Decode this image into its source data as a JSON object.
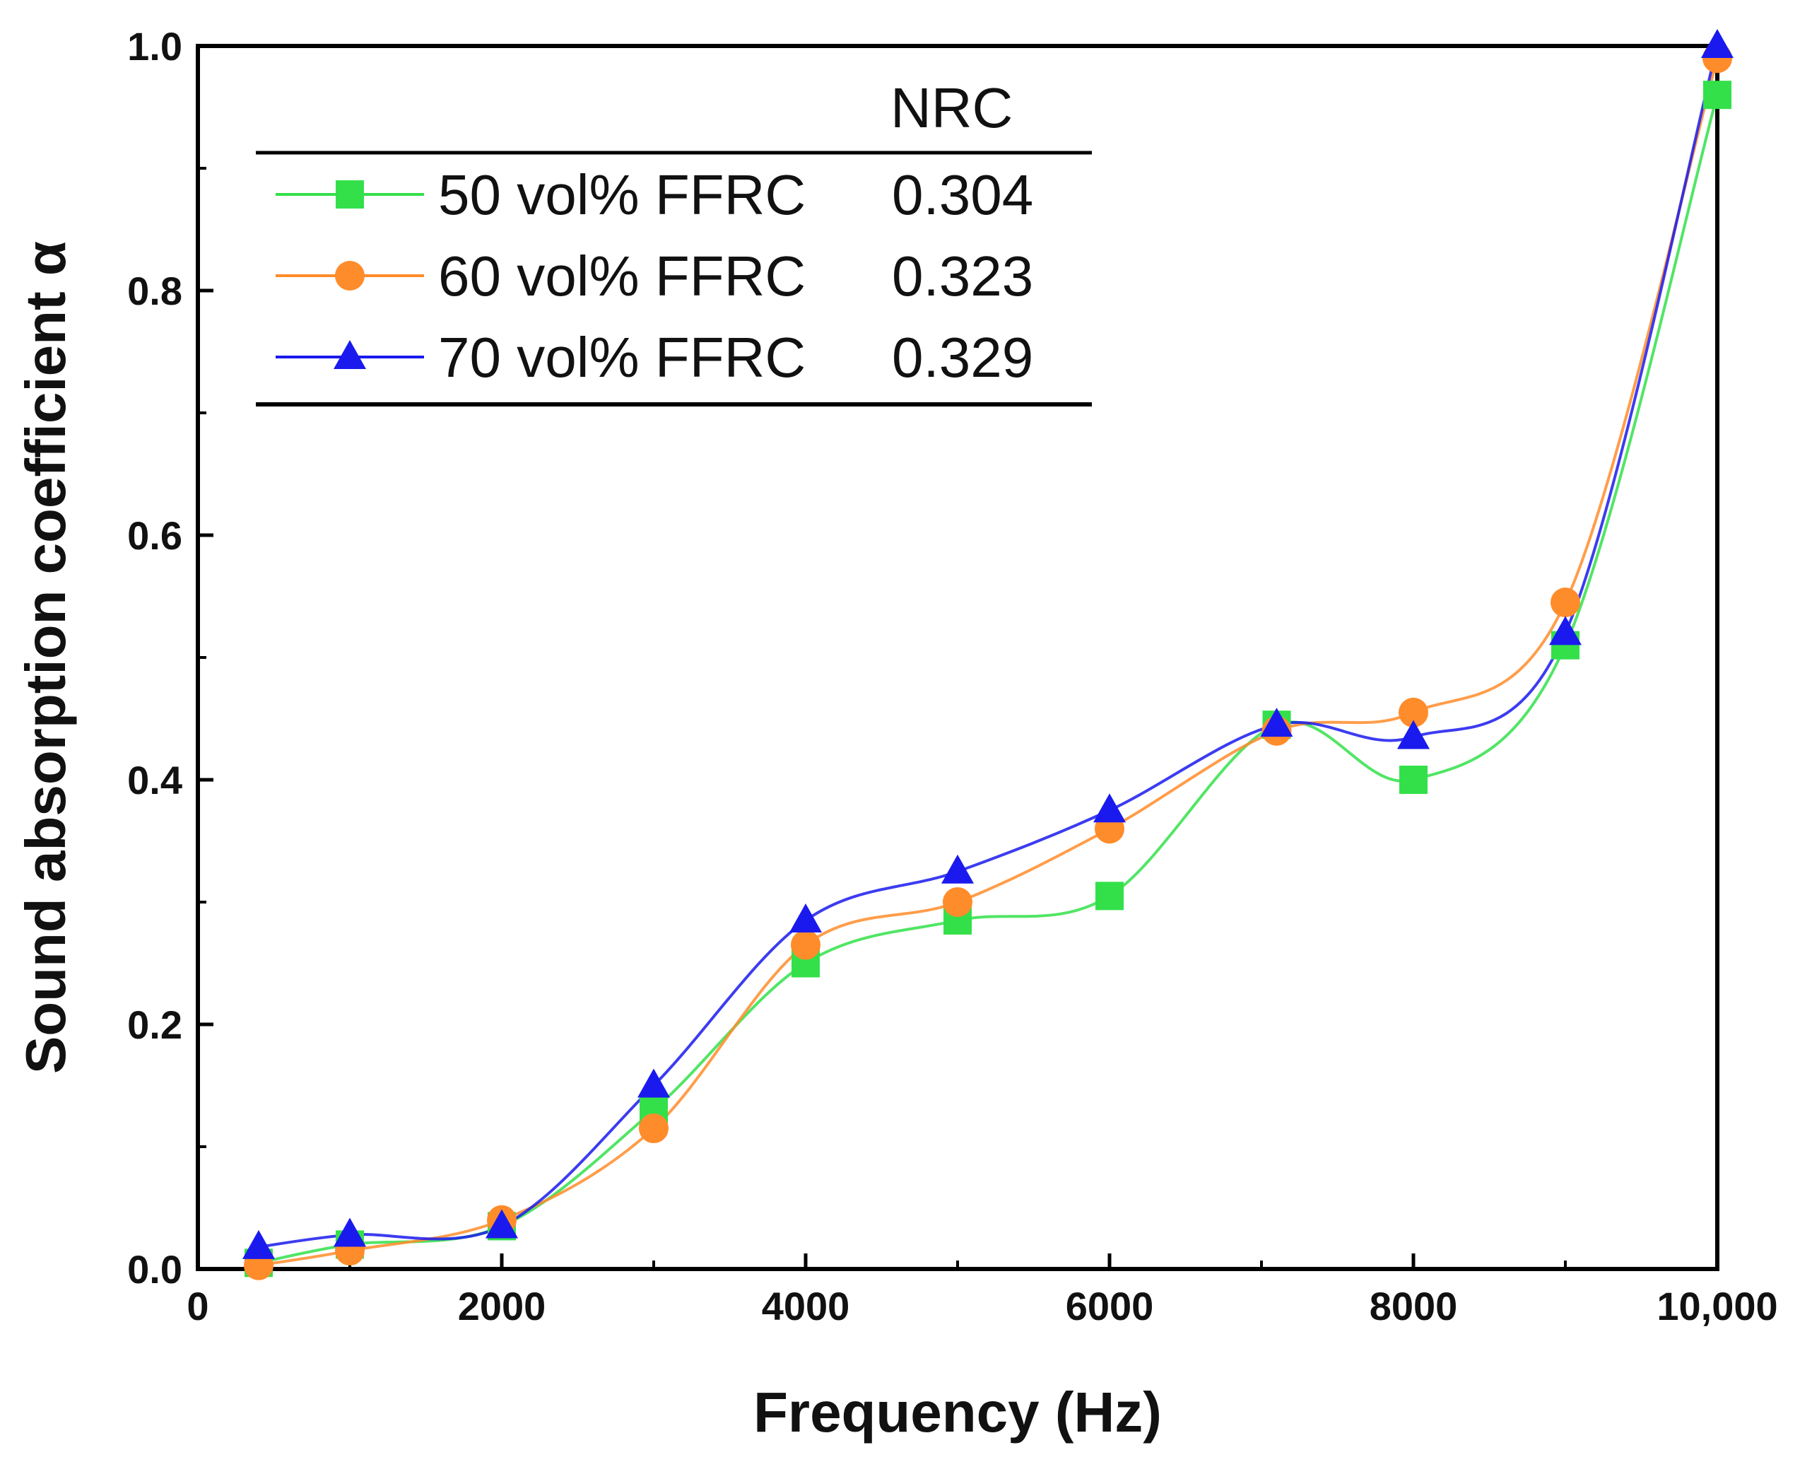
{
  "chart_data": {
    "type": "line",
    "title": "",
    "xlabel": "Frequency (Hz)",
    "ylabel": "Sound absorption coefficient α",
    "xlim": [
      0,
      10000
    ],
    "ylim": [
      0,
      1.0
    ],
    "xticks": [
      0,
      2000,
      4000,
      6000,
      8000,
      10000
    ],
    "xtick_labels": [
      "0",
      "2000",
      "4000",
      "6000",
      "8000",
      "10,000"
    ],
    "yticks": [
      0,
      0.2,
      0.4,
      0.6,
      0.8,
      1.0
    ],
    "ytick_labels": [
      "0.0",
      "0.2",
      "0.4",
      "0.6",
      "0.8",
      "1.0"
    ],
    "grid": false,
    "legend": {
      "position": "top-left",
      "header": "NRC",
      "entries": [
        {
          "label": "50 vol% FFRC",
          "nrc": "0.304"
        },
        {
          "label": "60 vol% FFRC",
          "nrc": "0.323"
        },
        {
          "label": "70 vol% FFRC",
          "nrc": "0.329"
        }
      ]
    },
    "series": [
      {
        "name": "50 vol% FFRC",
        "marker": "square",
        "color": "#33e04a",
        "x": [
          400,
          1000,
          2000,
          3000,
          4000,
          5000,
          6000,
          7100,
          8000,
          9000,
          10000
        ],
        "y": [
          0.005,
          0.02,
          0.035,
          0.13,
          0.25,
          0.285,
          0.305,
          0.445,
          0.4,
          0.51,
          0.96
        ]
      },
      {
        "name": "60 vol% FFRC",
        "marker": "circle",
        "color": "#ff8c2a",
        "x": [
          400,
          1000,
          2000,
          3000,
          4000,
          5000,
          6000,
          7100,
          8000,
          9000,
          10000
        ],
        "y": [
          0.003,
          0.015,
          0.04,
          0.115,
          0.265,
          0.3,
          0.36,
          0.44,
          0.455,
          0.545,
          0.99
        ]
      },
      {
        "name": "70 vol% FFRC",
        "marker": "triangle",
        "color": "#1a1aee",
        "x": [
          400,
          1000,
          2000,
          3000,
          4000,
          5000,
          6000,
          7100,
          8000,
          9000,
          10000
        ],
        "y": [
          0.018,
          0.028,
          0.035,
          0.15,
          0.285,
          0.325,
          0.375,
          0.445,
          0.435,
          0.52,
          1.0
        ]
      }
    ]
  }
}
